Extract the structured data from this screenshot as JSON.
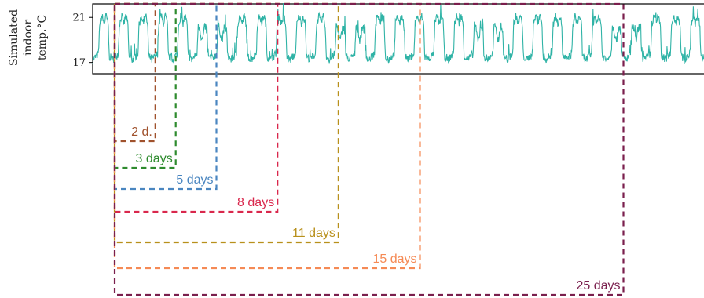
{
  "chart_data": {
    "type": "line",
    "ylabel": [
      "Simulated",
      "indoor",
      "temp.°C"
    ],
    "yticks": [
      21,
      17
    ],
    "ylim": [
      16.0,
      22.2
    ],
    "xlim": [
      0,
      31
    ],
    "grid": false,
    "series": [
      {
        "color": "#2fb3a6",
        "x_start": 0,
        "x_end": 31,
        "points_per_day": 24,
        "temp_low": 17,
        "temp_high": 21,
        "daily_pattern": "heating on day / setback night"
      }
    ],
    "windows": [
      {
        "label": "2 d.",
        "days": 2,
        "color": "#a0522d"
      },
      {
        "label": "3 days",
        "days": 3,
        "color": "#2e8b2e"
      },
      {
        "label": "5 days",
        "days": 5,
        "color": "#4a86c0"
      },
      {
        "label": "8 days",
        "days": 8,
        "color": "#d9274c"
      },
      {
        "label": "11 days",
        "days": 11,
        "color": "#b8901b"
      },
      {
        "label": "15 days",
        "days": 15,
        "color": "#f58a55"
      },
      {
        "label": "25 days",
        "days": 25,
        "color": "#7a1f4d"
      }
    ]
  }
}
